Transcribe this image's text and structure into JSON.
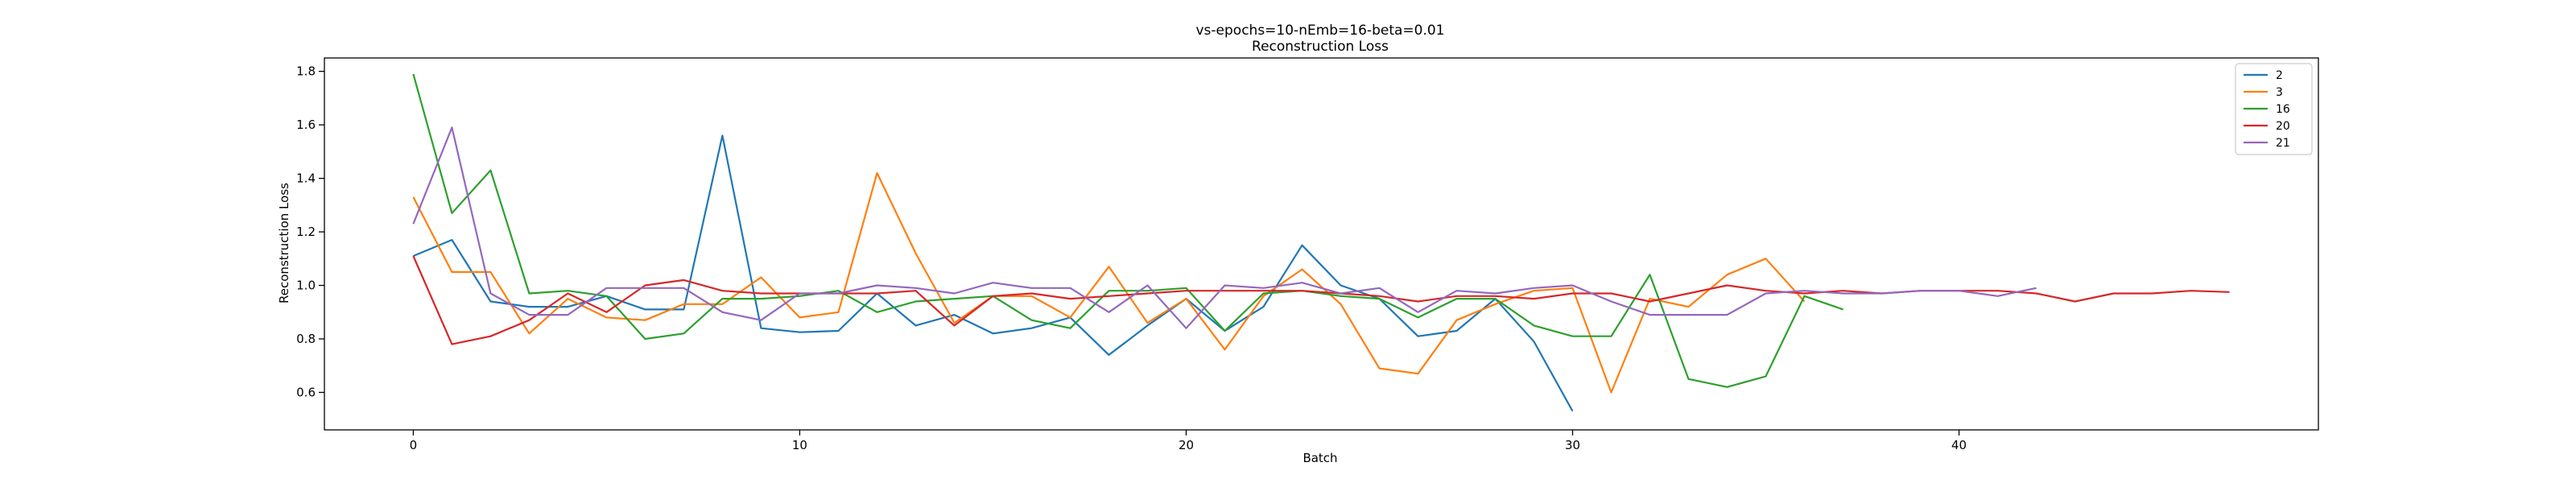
{
  "chart_data": {
    "type": "line",
    "title": "vs-epochs=10-nEmb=16-beta=0.01",
    "subtitle": "Reconstruction Loss",
    "xlabel": "Batch",
    "ylabel": "Reconstruction Loss",
    "xlim": [
      -2.3,
      49.3
    ],
    "ylim": [
      0.46,
      1.85
    ],
    "xticks": [
      0,
      10,
      20,
      30,
      40
    ],
    "yticks": [
      0.6,
      0.8,
      1.0,
      1.2,
      1.4,
      1.6,
      1.8
    ],
    "grid": false,
    "legend": "top-right",
    "series": [
      {
        "name": "2",
        "color": "#1f77b4",
        "values": [
          1.11,
          1.17,
          0.94,
          0.92,
          0.92,
          0.96,
          0.91,
          0.91,
          1.56,
          0.84,
          0.825,
          0.83,
          0.97,
          0.85,
          0.89,
          0.82,
          0.84,
          0.88,
          0.74,
          0.85,
          0.95,
          0.83,
          0.92,
          1.15,
          1.0,
          0.95,
          0.81,
          0.83,
          0.95,
          0.79,
          0.53
        ]
      },
      {
        "name": "3",
        "color": "#ff7f0e",
        "values": [
          1.33,
          1.05,
          1.05,
          0.82,
          0.95,
          0.88,
          0.87,
          0.93,
          0.93,
          1.03,
          0.88,
          0.9,
          1.42,
          1.12,
          0.86,
          0.96,
          0.96,
          0.88,
          1.07,
          0.86,
          0.95,
          0.76,
          0.96,
          1.06,
          0.93,
          0.69,
          0.67,
          0.87,
          0.93,
          0.98,
          0.99,
          0.6,
          0.95,
          0.92,
          1.04,
          1.1,
          0.94
        ]
      },
      {
        "name": "16",
        "color": "#2ca02c",
        "values": [
          1.79,
          1.27,
          1.43,
          0.97,
          0.98,
          0.96,
          0.8,
          0.82,
          0.95,
          0.95,
          0.96,
          0.98,
          0.9,
          0.94,
          0.95,
          0.96,
          0.87,
          0.84,
          0.98,
          0.98,
          0.99,
          0.83,
          0.97,
          0.98,
          0.96,
          0.95,
          0.88,
          0.95,
          0.95,
          0.85,
          0.81,
          0.81,
          1.04,
          0.65,
          0.62,
          0.66,
          0.96,
          0.91
        ]
      },
      {
        "name": "20",
        "color": "#d62728",
        "values": [
          1.11,
          0.78,
          0.81,
          0.87,
          0.97,
          0.9,
          1.0,
          1.02,
          0.98,
          0.97,
          0.97,
          0.97,
          0.97,
          0.98,
          0.85,
          0.96,
          0.97,
          0.95,
          0.96,
          0.97,
          0.98,
          0.98,
          0.98,
          0.98,
          0.97,
          0.96,
          0.94,
          0.96,
          0.96,
          0.95,
          0.97,
          0.97,
          0.94,
          0.97,
          1.0,
          0.98,
          0.97,
          0.98,
          0.97,
          0.98,
          0.98,
          0.98,
          0.97,
          0.94,
          0.97,
          0.97,
          0.98,
          0.975
        ]
      },
      {
        "name": "21",
        "color": "#9467bd",
        "values": [
          1.23,
          1.59,
          0.97,
          0.89,
          0.89,
          0.99,
          0.99,
          0.99,
          0.9,
          0.87,
          0.97,
          0.97,
          1.0,
          0.99,
          0.97,
          1.01,
          0.99,
          0.99,
          0.9,
          1.0,
          0.84,
          1.0,
          0.99,
          1.01,
          0.97,
          0.99,
          0.9,
          0.98,
          0.97,
          0.99,
          1.0,
          0.94,
          0.89,
          0.89,
          0.89,
          0.97,
          0.98,
          0.97,
          0.97,
          0.98,
          0.98,
          0.96,
          0.99
        ]
      }
    ]
  }
}
